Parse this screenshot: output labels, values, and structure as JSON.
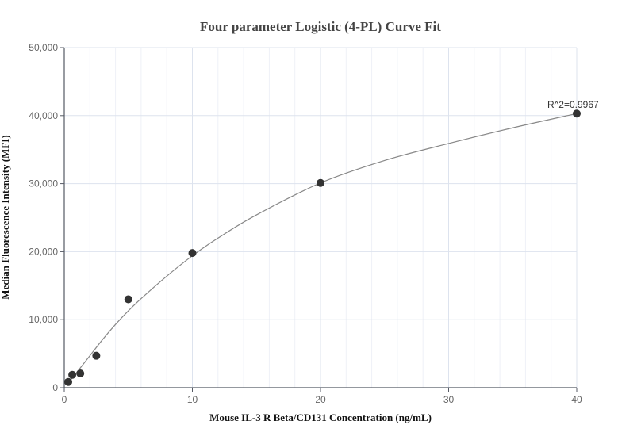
{
  "chart_data": {
    "type": "scatter",
    "title": "Four parameter Logistic (4-PL) Curve Fit",
    "xlabel": "Mouse IL-3 R Beta/CD131 Concentration (ng/mL)",
    "ylabel": "Median Fluorescence Intensity (MFI)",
    "xlim": [
      0,
      40
    ],
    "ylim": [
      0,
      50000
    ],
    "x_ticks": [
      0,
      10,
      20,
      30,
      40
    ],
    "x_tick_labels": [
      "0",
      "10",
      "20",
      "30",
      "40"
    ],
    "y_ticks": [
      0,
      10000,
      20000,
      30000,
      40000,
      50000
    ],
    "y_tick_labels": [
      "0",
      "10,000",
      "20,000",
      "30,000",
      "40,000",
      "50,000"
    ],
    "grid": true,
    "minor_grid_x_step": 2,
    "legend": "none",
    "series": [
      {
        "name": "Measured",
        "type": "scatter",
        "color": "#333333",
        "x": [
          0.3125,
          0.625,
          1.25,
          2.5,
          5,
          10,
          20,
          40
        ],
        "y": [
          850,
          1900,
          2100,
          4700,
          13000,
          19800,
          30100,
          40300
        ]
      },
      {
        "name": "4-PL Fit",
        "type": "line",
        "color": "#888888",
        "x": [
          0.3125,
          1,
          2,
          3,
          4,
          5,
          6,
          8,
          10,
          12,
          15,
          20,
          25,
          30,
          35,
          40
        ],
        "y": [
          700,
          2300,
          4700,
          7100,
          9300,
          11300,
          13100,
          16400,
          19400,
          22000,
          25400,
          30100,
          33400,
          35900,
          38200,
          40300
        ]
      }
    ],
    "annotations": [
      {
        "text": "R^2=0.9967",
        "x": 40,
        "y": 40300
      }
    ]
  }
}
